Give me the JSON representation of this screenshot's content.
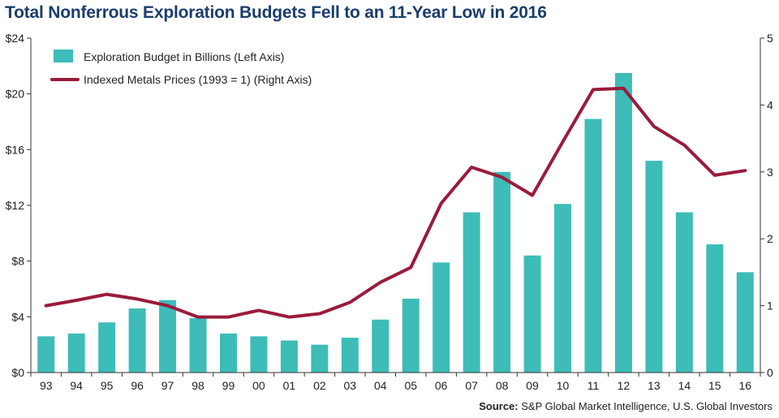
{
  "title": "Total Nonferrous Exploration Budgets Fell to an 11-Year Low in 2016",
  "source_label": "Source:",
  "source_text": "S&P Global Market Intelligence, U.S. Global Investors",
  "chart_data": {
    "type": "bar+line",
    "title": "Total Nonferrous Exploration Budgets Fell to an 11-Year Low in 2016",
    "categories": [
      "93",
      "94",
      "95",
      "96",
      "97",
      "98",
      "99",
      "00",
      "01",
      "02",
      "03",
      "04",
      "05",
      "06",
      "07",
      "08",
      "09",
      "10",
      "11",
      "12",
      "13",
      "14",
      "15",
      "16"
    ],
    "series": [
      {
        "name": "Exploration Budget in Billions (Left Axis)",
        "type": "bar",
        "axis": "left",
        "color": "#3dbcb8",
        "values": [
          2.6,
          2.8,
          3.6,
          4.6,
          5.2,
          3.9,
          2.8,
          2.6,
          2.3,
          2.0,
          2.5,
          3.8,
          5.3,
          7.9,
          11.5,
          14.4,
          8.4,
          12.1,
          18.2,
          21.5,
          15.2,
          11.5,
          9.2,
          7.2
        ]
      },
      {
        "name": "Indexed Metals Prices (1993 = 1) (Right Axis)",
        "type": "line",
        "axis": "right",
        "color": "#9a1b3b",
        "values": [
          1.0,
          1.08,
          1.17,
          1.1,
          1.0,
          0.83,
          0.83,
          0.93,
          0.83,
          0.88,
          1.05,
          1.35,
          1.57,
          2.53,
          3.07,
          2.92,
          2.65,
          3.45,
          4.23,
          4.25,
          3.68,
          3.4,
          2.95,
          3.02
        ]
      }
    ],
    "left_axis": {
      "ylim": [
        0,
        24
      ],
      "ticks": [
        0,
        4,
        8,
        12,
        16,
        20,
        24
      ],
      "tick_labels": [
        "$0",
        "$4",
        "$8",
        "$12",
        "$16",
        "$20",
        "$24"
      ]
    },
    "right_axis": {
      "ylim": [
        0,
        5
      ],
      "ticks": [
        0,
        1,
        2,
        3,
        4,
        5
      ],
      "tick_labels": [
        "0",
        "1",
        "2",
        "3",
        "4",
        "5"
      ]
    },
    "legend_position": "top-left",
    "grid": false
  }
}
